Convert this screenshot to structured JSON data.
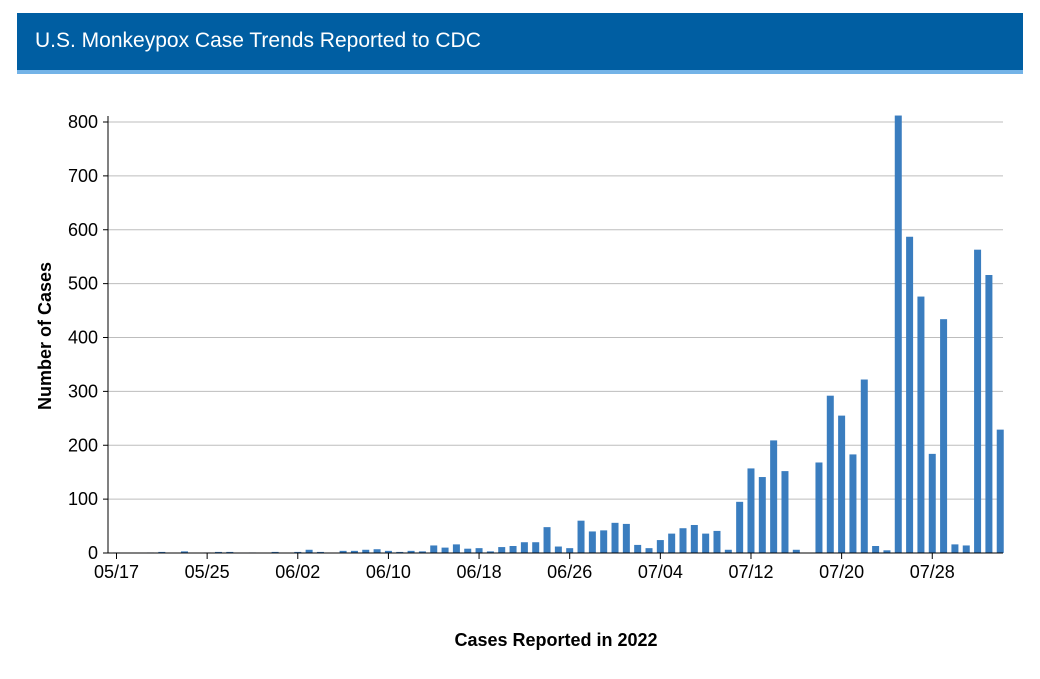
{
  "header": {
    "title": "U.S. Monkeypox Case Trends Reported to CDC"
  },
  "colors": {
    "header_bg": "#005ea2",
    "header_border": "#73b3e7",
    "bar": "#3a7dbf",
    "grid": "#bdbdbd"
  },
  "chart_data": {
    "type": "bar",
    "title": "U.S. Monkeypox Case Trends Reported to CDC",
    "xlabel": "Cases Reported in 2022",
    "ylabel": "Number of Cases",
    "ylim": [
      0,
      800
    ],
    "y_ticks": [
      0,
      100,
      200,
      300,
      400,
      500,
      600,
      700,
      800
    ],
    "grid": true,
    "x_ticks": [
      "05/17",
      "05/25",
      "06/02",
      "06/10",
      "06/18",
      "06/26",
      "07/04",
      "07/12",
      "07/20",
      "07/28"
    ],
    "categories": [
      "05/17",
      "05/18",
      "05/19",
      "05/20",
      "05/21",
      "05/22",
      "05/23",
      "05/24",
      "05/25",
      "05/26",
      "05/27",
      "05/28",
      "05/29",
      "05/30",
      "05/31",
      "06/01",
      "06/02",
      "06/03",
      "06/04",
      "06/05",
      "06/06",
      "06/07",
      "06/08",
      "06/09",
      "06/10",
      "06/11",
      "06/12",
      "06/13",
      "06/14",
      "06/15",
      "06/16",
      "06/17",
      "06/18",
      "06/19",
      "06/20",
      "06/21",
      "06/22",
      "06/23",
      "06/24",
      "06/25",
      "06/26",
      "06/27",
      "06/28",
      "06/29",
      "06/30",
      "07/01",
      "07/02",
      "07/03",
      "07/04",
      "07/05",
      "07/06",
      "07/07",
      "07/08",
      "07/09",
      "07/10",
      "07/11",
      "07/12",
      "07/13",
      "07/14",
      "07/15",
      "07/16",
      "07/17",
      "07/18",
      "07/19",
      "07/20",
      "07/21",
      "07/22",
      "07/23",
      "07/24",
      "07/25",
      "07/26",
      "07/27",
      "07/28",
      "07/29",
      "07/30",
      "07/31",
      "08/01",
      "08/02",
      "08/03"
    ],
    "values": [
      1,
      0,
      0,
      1,
      2,
      0,
      3,
      0,
      1,
      2,
      2,
      0,
      1,
      0,
      2,
      0,
      2,
      6,
      2,
      0,
      4,
      4,
      6,
      7,
      4,
      2,
      4,
      3,
      14,
      10,
      16,
      8,
      9,
      3,
      11,
      13,
      20,
      20,
      48,
      12,
      9,
      60,
      40,
      42,
      56,
      54,
      15,
      9,
      24,
      36,
      46,
      52,
      36,
      41,
      6,
      95,
      157,
      141,
      209,
      152,
      6,
      0,
      168,
      292,
      255,
      183,
      322,
      13,
      5,
      812,
      587,
      476,
      184,
      434,
      16,
      14,
      563,
      516,
      229
    ]
  }
}
